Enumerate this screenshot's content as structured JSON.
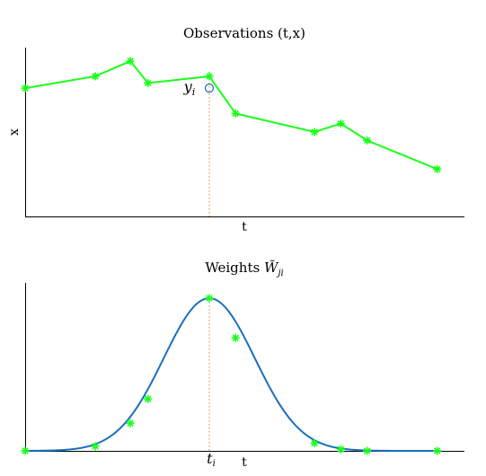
{
  "colors": {
    "series": "#1aff1a",
    "curve": "#1a6fbf",
    "marker": "#1aff1a",
    "ref_line": "#d98c3a",
    "circle": "#1a6fbf"
  },
  "chart_data": [
    {
      "type": "line",
      "title": "Observations (t,x)",
      "xlabel": "t",
      "ylabel": "x",
      "xlim": [
        0,
        25
      ],
      "ylim": [
        0,
        10
      ],
      "ticks_shown": false,
      "grid": false,
      "series": [
        {
          "marker": "asterisk",
          "x": [
            0,
            4,
            6,
            7,
            10.5,
            12,
            16.5,
            18,
            19.5,
            23.5
          ],
          "y": [
            7.6,
            8.3,
            9.2,
            7.9,
            8.3,
            6.1,
            5.0,
            5.5,
            4.5,
            2.8
          ]
        }
      ],
      "reference_x": 10.5,
      "highlight_point": {
        "x": 10.5,
        "y": 7.6,
        "label": "y_i",
        "marker": "circle"
      }
    },
    {
      "type": "line",
      "title": "Weights W̃_ji",
      "xlabel": "t",
      "ylabel": "",
      "xlim": [
        0,
        25
      ],
      "ylim": [
        0,
        1.1
      ],
      "ticks_shown": false,
      "grid": false,
      "series": [
        {
          "kind": "curve",
          "shape": "gaussian",
          "center": 10.5,
          "sigma": 2.6,
          "peak": 1.0
        },
        {
          "kind": "samples",
          "marker": "asterisk",
          "x": [
            0,
            4,
            6,
            7,
            10.5,
            12,
            16.5,
            18,
            19.5,
            23.5
          ],
          "y": [
            0.0,
            0.03,
            0.18,
            0.34,
            1.0,
            0.74,
            0.05,
            0.01,
            0.0,
            0.0
          ]
        }
      ],
      "reference_x": 10.5,
      "reference_tick": {
        "label": "t_i"
      }
    }
  ]
}
